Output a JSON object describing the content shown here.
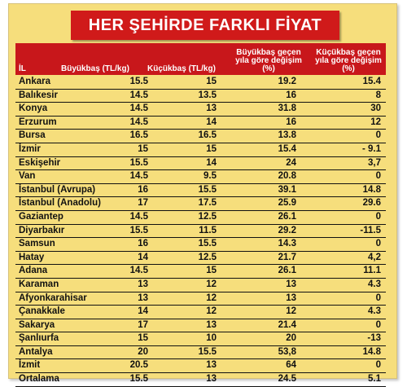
{
  "title": "HER ŞEHİRDE FARKLI FİYAT",
  "headers": {
    "city": "İL",
    "buyukbas": "Büyükbaş (TL/kg)",
    "kucukbas": "Küçükbaş (TL/kg)",
    "buyukbas_change": "Büyükbaş geçen yıla göre değişim (%)",
    "kucukbas_change": "Küçükbaş geçen yıla göre değişim (%)"
  },
  "rows": [
    {
      "city": "Ankara",
      "b": "15.5",
      "k": "15",
      "bd": "19.2",
      "kd": "15.4"
    },
    {
      "city": "Balıkesir",
      "b": "14.5",
      "k": "13.5",
      "bd": "16",
      "kd": "8"
    },
    {
      "city": "Konya",
      "b": "14.5",
      "k": "13",
      "bd": "31.8",
      "kd": "30"
    },
    {
      "city": "Erzurum",
      "b": "14.5",
      "k": "14",
      "bd": "16",
      "kd": "12"
    },
    {
      "city": "Bursa",
      "b": "16.5",
      "k": "16.5",
      "bd": "13.8",
      "kd": "0"
    },
    {
      "city": "İzmir",
      "b": "15",
      "k": "15",
      "bd": "15.4",
      "kd": "- 9.1"
    },
    {
      "city": "Eskişehir",
      "b": "15.5",
      "k": "14",
      "bd": "24",
      "kd": "3,7"
    },
    {
      "city": "Van",
      "b": "14.5",
      "k": "9.5",
      "bd": "20.8",
      "kd": "0"
    },
    {
      "city": "İstanbul (Avrupa)",
      "b": "16",
      "k": "15.5",
      "bd": "39.1",
      "kd": "14.8"
    },
    {
      "city": "İstanbul (Anadolu)",
      "b": "17",
      "k": "17.5",
      "bd": "25.9",
      "kd": "29.6"
    },
    {
      "city": "Gaziantep",
      "b": "14.5",
      "k": "12.5",
      "bd": "26.1",
      "kd": "0"
    },
    {
      "city": "Diyarbakır",
      "b": "15.5",
      "k": "11.5",
      "bd": "29.2",
      "kd": "-11.5"
    },
    {
      "city": "Samsun",
      "b": "16",
      "k": "15.5",
      "bd": "14.3",
      "kd": "0"
    },
    {
      "city": "Hatay",
      "b": "14",
      "k": "12.5",
      "bd": "21.7",
      "kd": "4,2"
    },
    {
      "city": "Adana",
      "b": "14.5",
      "k": "15",
      "bd": "26.1",
      "kd": "11.1"
    },
    {
      "city": "Karaman",
      "b": "13",
      "k": "12",
      "bd": "13",
      "kd": "4.3"
    },
    {
      "city": "Afyonkarahisar",
      "b": "13",
      "k": "12",
      "bd": "13",
      "kd": "0"
    },
    {
      "city": "Çanakkale",
      "b": "14",
      "k": "12",
      "bd": "12",
      "kd": "4.3"
    },
    {
      "city": "Sakarya",
      "b": "17",
      "k": "13",
      "bd": "21.4",
      "kd": "0"
    },
    {
      "city": "Şanlıurfa",
      "b": "15",
      "k": "10",
      "bd": "20",
      "kd": "-13"
    },
    {
      "city": "Antalya",
      "b": "20",
      "k": "15.5",
      "bd": "53,8",
      "kd": "14.8"
    },
    {
      "city": "İzmit",
      "b": "20.5",
      "k": "13",
      "bd": "64",
      "kd": "0"
    },
    {
      "city": "Ortalama",
      "b": "15.5",
      "k": "13",
      "bd": "24.5",
      "kd": "5.1"
    }
  ]
}
